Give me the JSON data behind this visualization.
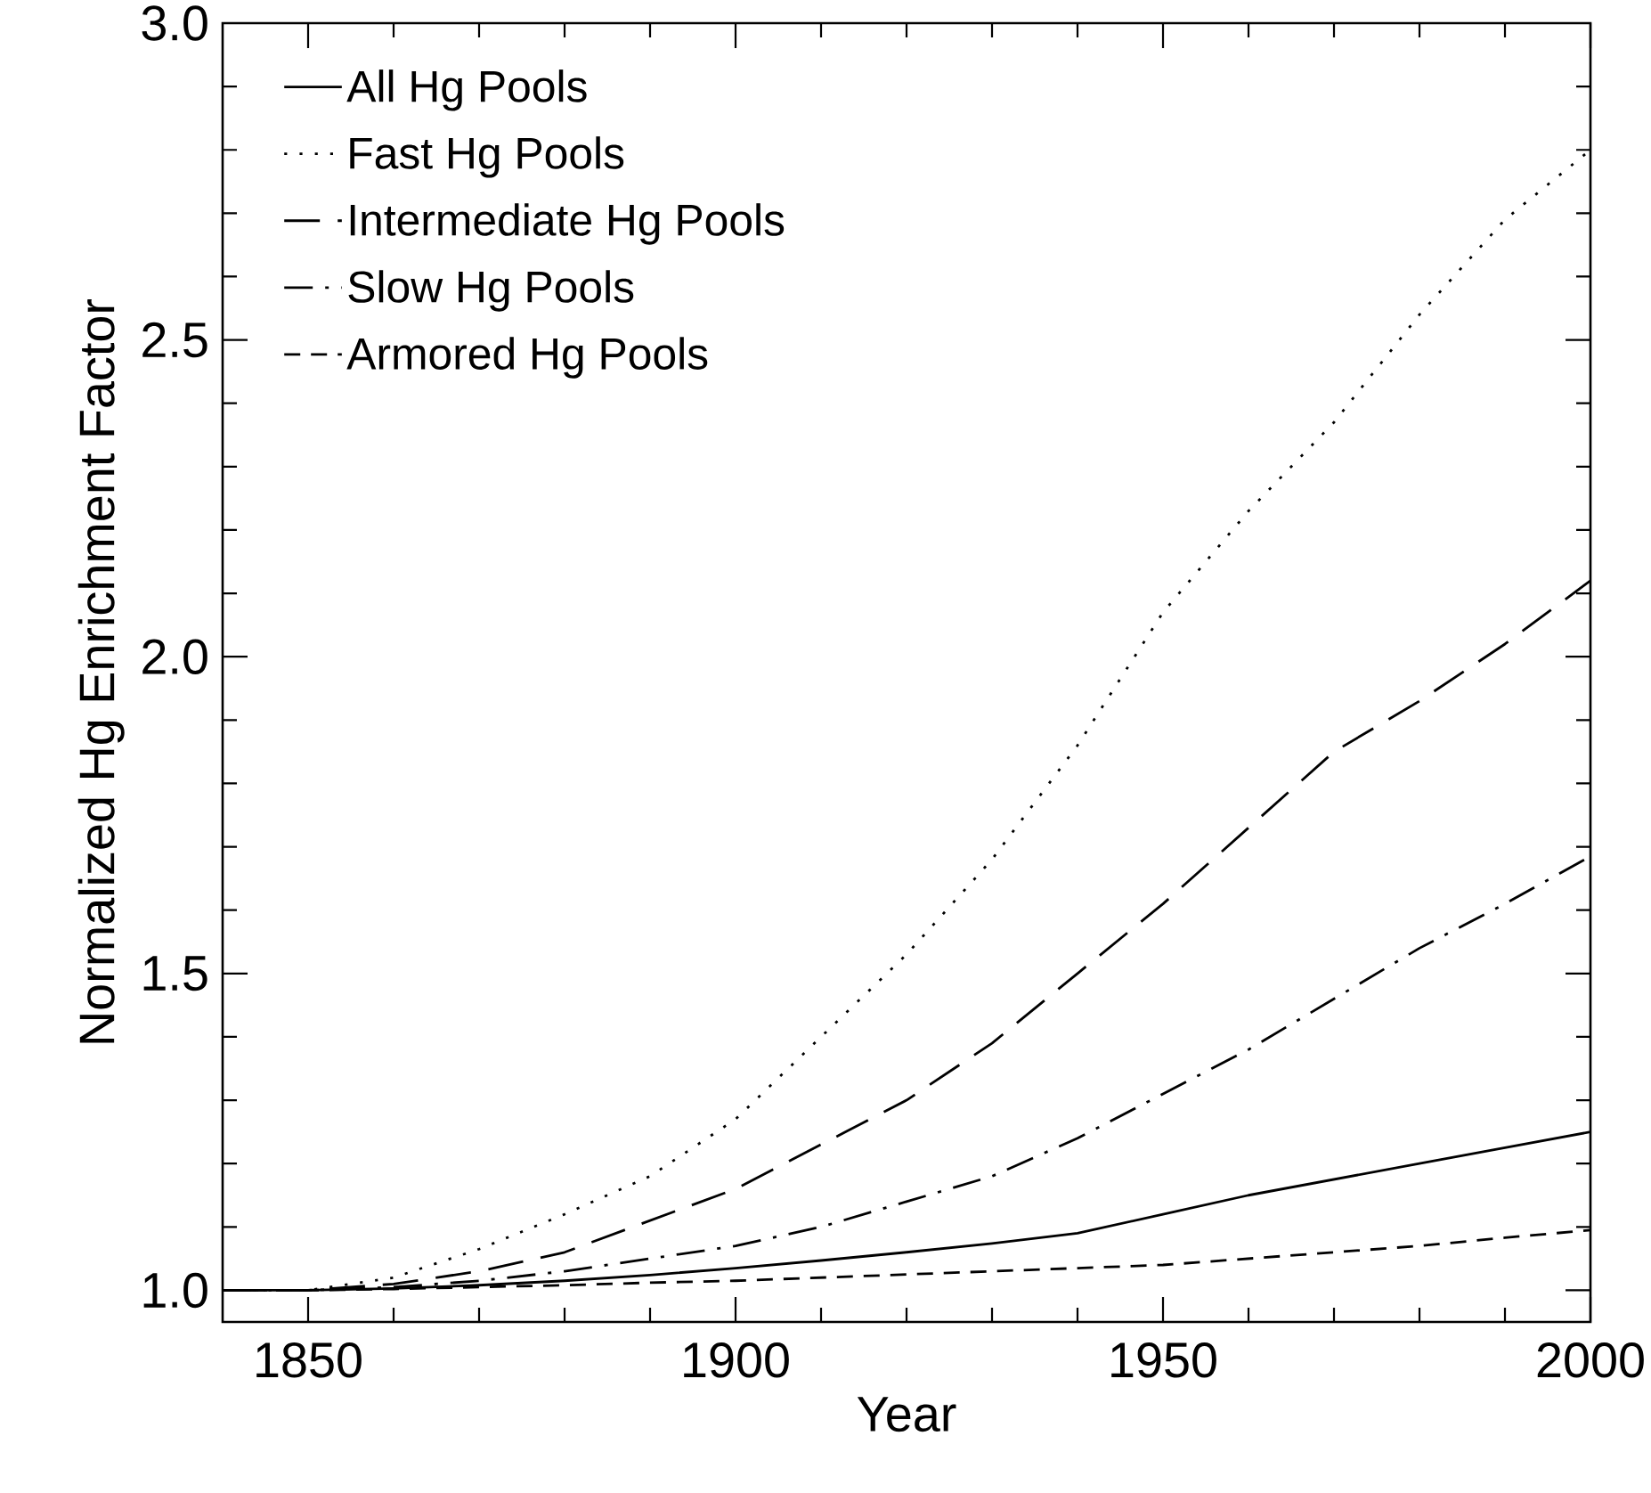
{
  "chart_data": {
    "type": "line",
    "xlabel": "Year",
    "ylabel": "Normalized Hg Enrichment Factor",
    "x": [
      1840,
      1850,
      1860,
      1870,
      1880,
      1890,
      1900,
      1910,
      1920,
      1930,
      1940,
      1950,
      1960,
      1970,
      1980,
      1990,
      2000
    ],
    "series": [
      {
        "name": "All Hg Pools",
        "color": "#000000",
        "line_style": "solid",
        "values": [
          1.0,
          1.0,
          1.003,
          1.008,
          1.015,
          1.024,
          1.035,
          1.047,
          1.06,
          1.074,
          1.09,
          1.12,
          1.15,
          1.175,
          1.2,
          1.225,
          1.25
        ]
      },
      {
        "name": "Fast Hg Pools",
        "color": "#000000",
        "line_style": "dotted",
        "values": [
          1.0,
          1.0,
          1.02,
          1.065,
          1.12,
          1.18,
          1.27,
          1.4,
          1.53,
          1.68,
          1.86,
          2.07,
          2.23,
          2.37,
          2.54,
          2.69,
          2.8
        ]
      },
      {
        "name": "Intermediate Hg Pools",
        "color": "#000000",
        "line_style": "dashed",
        "values": [
          1.0,
          1.0,
          1.01,
          1.03,
          1.06,
          1.11,
          1.16,
          1.23,
          1.3,
          1.39,
          1.5,
          1.61,
          1.73,
          1.85,
          1.93,
          2.02,
          2.12
        ]
      },
      {
        "name": "Slow Hg Pools",
        "color": "#000000",
        "line_style": "dashdot",
        "values": [
          1.0,
          1.0,
          1.005,
          1.015,
          1.03,
          1.05,
          1.07,
          1.1,
          1.14,
          1.18,
          1.24,
          1.31,
          1.38,
          1.46,
          1.54,
          1.61,
          1.685
        ]
      },
      {
        "name": "Armored Hg Pools",
        "color": "#000000",
        "line_style": "short dashed",
        "values": [
          1.0,
          1.0,
          1.002,
          1.005,
          1.008,
          1.012,
          1.015,
          1.02,
          1.025,
          1.03,
          1.035,
          1.04,
          1.05,
          1.06,
          1.07,
          1.083,
          1.095
        ]
      }
    ],
    "xlim": [
      1840,
      2000
    ],
    "ylim": [
      0.95,
      3.0
    ],
    "xticks": [
      1850,
      1900,
      1950,
      2000
    ],
    "yticks": [
      {
        "value": 1,
        "label": "1.0"
      },
      1.5,
      {
        "value": 2,
        "label": "2.0"
      },
      2.5,
      {
        "value": 3,
        "label": "3.0"
      }
    ],
    "grid": false,
    "legend": "top left",
    "marker": "none"
  }
}
